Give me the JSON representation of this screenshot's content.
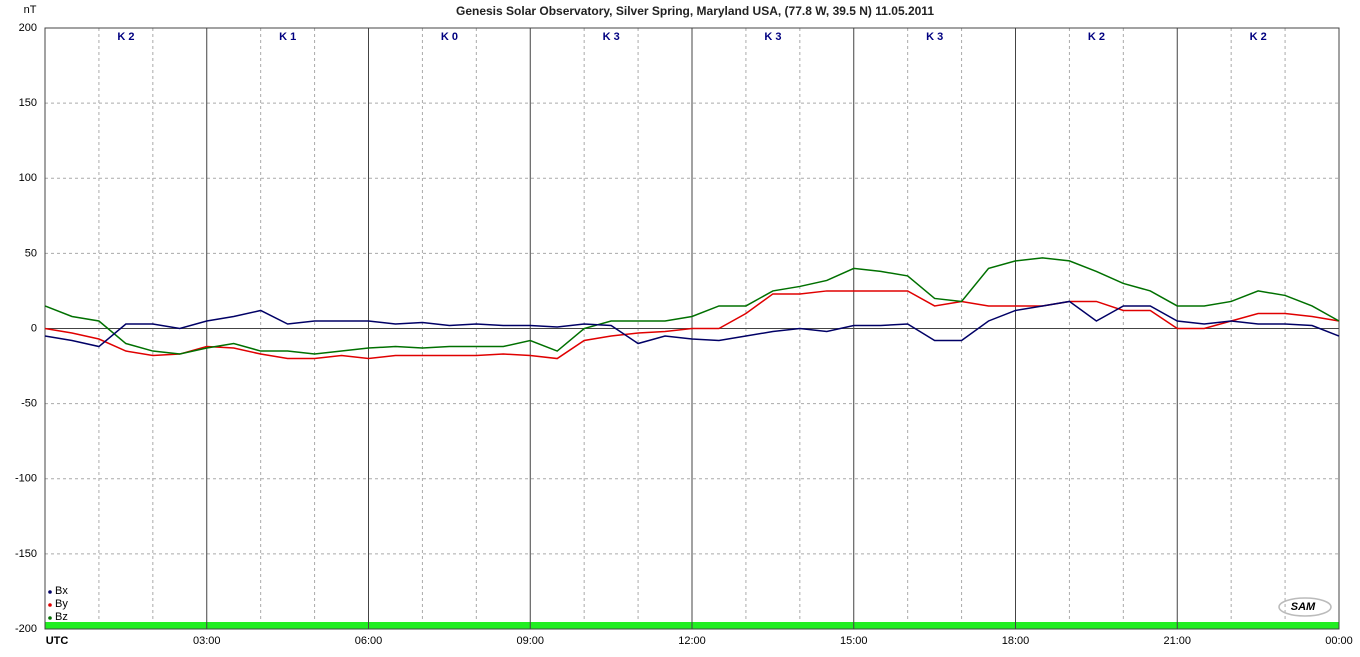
{
  "chart_data": {
    "type": "line",
    "title": "Genesis Solar Observatory, Silver Spring, Maryland USA, (77.8 W, 39.5 N)  11.05.2011",
    "ylabel": "nT",
    "logo": "SAM",
    "k_labels": [
      "K 2",
      "K 1",
      "K 0",
      "K 3",
      "K 3",
      "K 3",
      "K 2",
      "K 2"
    ],
    "x": [
      0,
      0.5,
      1,
      1.5,
      2,
      2.5,
      3,
      3.5,
      4,
      4.5,
      5,
      5.5,
      6,
      6.5,
      7,
      7.5,
      8,
      8.5,
      9,
      9.5,
      10,
      10.5,
      11,
      11.5,
      12,
      12.5,
      13,
      13.5,
      14,
      14.5,
      15,
      15.5,
      16,
      16.5,
      17,
      17.5,
      18,
      18.5,
      19,
      19.5,
      20,
      20.5,
      21,
      21.5,
      22,
      22.5,
      23,
      23.5,
      24
    ],
    "series": [
      {
        "name": "Bx",
        "color": "#000066",
        "values": [
          -5,
          -8,
          -12,
          3,
          3,
          0,
          5,
          8,
          12,
          3,
          5,
          5,
          5,
          3,
          4,
          2,
          3,
          2,
          2,
          1,
          3,
          2,
          -10,
          -5,
          -7,
          -8,
          -5,
          -2,
          0,
          -2,
          2,
          2,
          3,
          -8,
          -8,
          5,
          12,
          15,
          18,
          5,
          15,
          15,
          5,
          3,
          5,
          3,
          3,
          2,
          -5
        ]
      },
      {
        "name": "By",
        "color": "#e00000",
        "values": [
          0,
          -3,
          -7,
          -15,
          -18,
          -17,
          -12,
          -13,
          -17,
          -20,
          -20,
          -18,
          -20,
          -18,
          -18,
          -18,
          -18,
          -17,
          -18,
          -20,
          -8,
          -5,
          -3,
          -2,
          0,
          0,
          10,
          23,
          23,
          25,
          25,
          25,
          25,
          15,
          18,
          15,
          15,
          15,
          18,
          18,
          12,
          12,
          0,
          0,
          5,
          10,
          10,
          8,
          5
        ]
      },
      {
        "name": "Bz",
        "color": "#007000",
        "values": [
          15,
          8,
          5,
          -10,
          -15,
          -17,
          -13,
          -10,
          -15,
          -15,
          -17,
          -15,
          -13,
          -12,
          -13,
          -12,
          -12,
          -12,
          -8,
          -15,
          0,
          5,
          5,
          5,
          8,
          15,
          15,
          25,
          28,
          32,
          40,
          38,
          35,
          20,
          18,
          40,
          45,
          47,
          45,
          38,
          30,
          25,
          15,
          15,
          18,
          25,
          22,
          15,
          5
        ]
      }
    ],
    "xlim": [
      0,
      24
    ],
    "xticks": [
      {
        "value": 0,
        "label": "UTC"
      },
      {
        "value": 3,
        "label": "03:00"
      },
      {
        "value": 6,
        "label": "06:00"
      },
      {
        "value": 9,
        "label": "09:00"
      },
      {
        "value": 12,
        "label": "12:00"
      },
      {
        "value": 15,
        "label": "15:00"
      },
      {
        "value": 18,
        "label": "18:00"
      },
      {
        "value": 21,
        "label": "21:00"
      },
      {
        "value": 24,
        "label": "00:00"
      }
    ],
    "ylim": [
      -200,
      200
    ],
    "yticks": [
      -200,
      -150,
      -100,
      -50,
      0,
      50,
      100,
      150,
      200
    ],
    "grid": true,
    "legend": "lower left"
  }
}
